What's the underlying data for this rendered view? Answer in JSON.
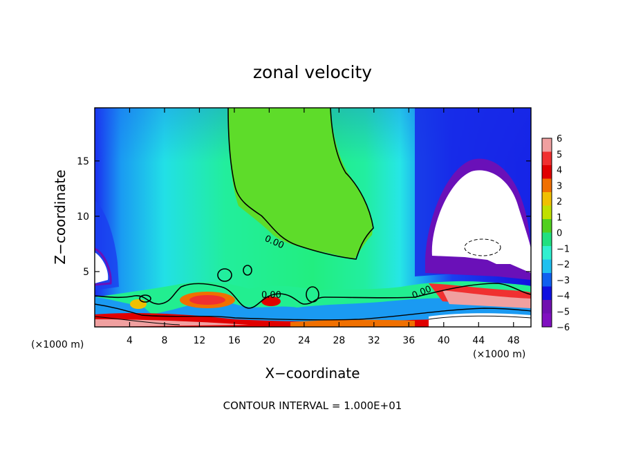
{
  "chart_data": {
    "type": "heatmap",
    "title": "zonal velocity",
    "xlabel": "X−coordinate",
    "ylabel": "Z−coordinate",
    "x_unit_left": "(×1000 m)",
    "x_unit_right": "(×1000 m)",
    "xlim": [
      0,
      50
    ],
    "ylim": [
      0,
      19.8
    ],
    "x_ticks": [
      4,
      8,
      12,
      16,
      20,
      24,
      28,
      32,
      36,
      40,
      44,
      48
    ],
    "y_ticks": [
      5,
      10,
      15
    ],
    "colorbar_levels": [
      6,
      5,
      4,
      3,
      2,
      1,
      0,
      "−1",
      "−2",
      "−3",
      "−4",
      "−5",
      "−6"
    ],
    "colorbar_colors": [
      "#f0a0a0",
      "#f03030",
      "#e00000",
      "#f07000",
      "#f0c000",
      "#c0e000",
      "#50d020",
      "#20e080",
      "#30f0d0",
      "#20c0f0",
      "#1060f0",
      "#1010e0",
      "#7010b0",
      "#8010c0"
    ],
    "contour_labels": [
      "0.00",
      "0.00",
      "0.00"
    ],
    "footer": "CONTOUR INTERVAL = 1.000E+01"
  }
}
